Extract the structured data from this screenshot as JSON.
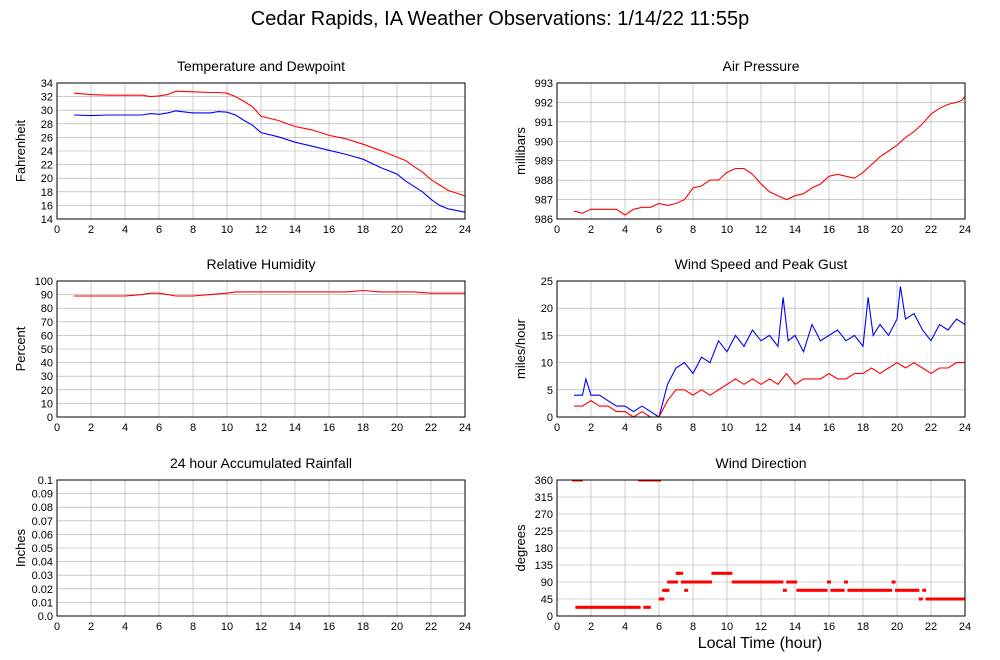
{
  "title": "Cedar Rapids, IA Weather Observations: 1/14/22 11:55p",
  "xlabel": "Local Time (hour)",
  "colors": {
    "red": "#ff0000",
    "blue": "#0000ff",
    "grid": "#aaaaaa",
    "frame": "#000000"
  },
  "chart_data": [
    {
      "id": "temp",
      "type": "line",
      "title": "Temperature and Dewpoint",
      "xlabel": "",
      "ylabel": "Fahrenheit",
      "xlim": [
        0,
        24
      ],
      "ylim": [
        14,
        34
      ],
      "xticks": [
        0,
        2,
        4,
        6,
        8,
        10,
        12,
        14,
        16,
        18,
        20,
        22,
        24
      ],
      "yticks": [
        14,
        16,
        18,
        20,
        22,
        24,
        26,
        28,
        30,
        32,
        34
      ],
      "grid": true,
      "series": [
        {
          "color": "#ff0000",
          "x": [
            1,
            2,
            3,
            4,
            5,
            5.5,
            6,
            6.5,
            7,
            8,
            9,
            9.5,
            10,
            10.5,
            11,
            11.5,
            12,
            13,
            14,
            15,
            16,
            17,
            18,
            19,
            20,
            20.5,
            21,
            21.5,
            22,
            22.5,
            23,
            24
          ],
          "y": [
            32.5,
            32.3,
            32.2,
            32.2,
            32.2,
            32.0,
            32.1,
            32.3,
            32.8,
            32.7,
            32.6,
            32.6,
            32.5,
            32.0,
            31.3,
            30.5,
            29.1,
            28.5,
            27.6,
            27.1,
            26.3,
            25.8,
            25.0,
            24.1,
            23.1,
            22.6,
            21.7,
            20.9,
            19.8,
            19.0,
            18.2,
            17.4
          ]
        },
        {
          "color": "#0000ff",
          "x": [
            1,
            2,
            3,
            4,
            5,
            5.5,
            6,
            6.5,
            7,
            8,
            9,
            9.5,
            10,
            10.5,
            11,
            11.5,
            12,
            13,
            14,
            15,
            16,
            17,
            18,
            19,
            20,
            20.5,
            21,
            21.5,
            22,
            22.5,
            23,
            24
          ],
          "y": [
            29.3,
            29.2,
            29.3,
            29.3,
            29.3,
            29.5,
            29.4,
            29.6,
            29.9,
            29.6,
            29.6,
            29.8,
            29.7,
            29.3,
            28.5,
            27.8,
            26.7,
            26.1,
            25.3,
            24.7,
            24.1,
            23.5,
            22.8,
            21.6,
            20.6,
            19.6,
            18.8,
            18.0,
            16.9,
            16.0,
            15.5,
            15.0
          ]
        }
      ]
    },
    {
      "id": "pressure",
      "type": "line",
      "title": "Air Pressure",
      "xlabel": "",
      "ylabel": "millibars",
      "xlim": [
        0,
        24
      ],
      "ylim": [
        986,
        993
      ],
      "xticks": [
        0,
        2,
        4,
        6,
        8,
        10,
        12,
        14,
        16,
        18,
        20,
        22,
        24
      ],
      "yticks": [
        986,
        987,
        988,
        989,
        990,
        991,
        992,
        993
      ],
      "grid": true,
      "series": [
        {
          "color": "#ff0000",
          "x": [
            1,
            1.5,
            2,
            2.5,
            3,
            3.5,
            4,
            4.5,
            5,
            5.5,
            6,
            6.5,
            7,
            7.5,
            8,
            8.5,
            9,
            9.5,
            10,
            10.5,
            11,
            11.5,
            12,
            12.5,
            13,
            13.5,
            14,
            14.5,
            15,
            15.5,
            16,
            16.5,
            17,
            17.5,
            18,
            18.5,
            19,
            19.5,
            20,
            20.5,
            21,
            21.5,
            22,
            22.5,
            23,
            23.5,
            23.8,
            24
          ],
          "y": [
            986.4,
            986.3,
            986.5,
            986.5,
            986.5,
            986.5,
            986.2,
            986.5,
            986.6,
            986.6,
            986.8,
            986.7,
            986.8,
            987.0,
            987.6,
            987.7,
            988.0,
            988.0,
            988.4,
            988.6,
            988.6,
            988.3,
            987.8,
            987.4,
            987.2,
            987.0,
            987.2,
            987.3,
            987.6,
            987.8,
            988.2,
            988.3,
            988.2,
            988.1,
            988.4,
            988.8,
            989.2,
            989.5,
            989.8,
            990.2,
            990.5,
            990.9,
            991.4,
            991.7,
            991.9,
            992.0,
            992.1,
            992.3
          ]
        }
      ]
    },
    {
      "id": "humidity",
      "type": "line",
      "title": "Relative Humidity",
      "xlabel": "",
      "ylabel": "Percent",
      "xlim": [
        0,
        24
      ],
      "ylim": [
        0,
        100
      ],
      "xticks": [
        0,
        2,
        4,
        6,
        8,
        10,
        12,
        14,
        16,
        18,
        20,
        22,
        24
      ],
      "yticks": [
        0,
        10,
        20,
        30,
        40,
        50,
        60,
        70,
        80,
        90,
        100
      ],
      "grid": true,
      "series": [
        {
          "color": "#ff0000",
          "x": [
            1,
            2,
            3,
            4,
            5,
            5.5,
            6,
            6.5,
            7,
            8,
            9,
            10,
            10.5,
            11,
            12,
            13,
            14,
            15,
            16,
            17,
            18,
            19,
            20,
            21,
            22,
            23,
            24
          ],
          "y": [
            89,
            89,
            89,
            89,
            90,
            91,
            91,
            90,
            89,
            89,
            90,
            91,
            92,
            92,
            92,
            92,
            92,
            92,
            92,
            92,
            93,
            92,
            92,
            92,
            91,
            91,
            91
          ]
        }
      ]
    },
    {
      "id": "wind",
      "type": "line",
      "title": "Wind Speed and Peak Gust",
      "xlabel": "",
      "ylabel": "miles/hour",
      "xlim": [
        0,
        24
      ],
      "ylim": [
        0,
        25
      ],
      "xticks": [
        0,
        2,
        4,
        6,
        8,
        10,
        12,
        14,
        16,
        18,
        20,
        22,
        24
      ],
      "yticks": [
        0,
        5,
        10,
        15,
        20,
        25
      ],
      "grid": true,
      "series": [
        {
          "color": "#0000ff",
          "x": [
            1,
            1.5,
            1.7,
            2,
            2.5,
            3,
            3.5,
            4,
            4.5,
            5,
            5.5,
            6,
            6.5,
            7,
            7.5,
            8,
            8.5,
            9,
            9.5,
            10,
            10.5,
            11,
            11.5,
            12,
            12.5,
            13,
            13.3,
            13.6,
            14,
            14.5,
            15,
            15.5,
            16,
            16.5,
            17,
            17.5,
            18,
            18.3,
            18.6,
            19,
            19.5,
            20,
            20.2,
            20.5,
            21,
            21.5,
            22,
            22.5,
            23,
            23.5,
            24
          ],
          "y": [
            4,
            4,
            7,
            4,
            4,
            3,
            2,
            2,
            1,
            2,
            1,
            0,
            6,
            9,
            10,
            8,
            11,
            10,
            14,
            12,
            15,
            13,
            16,
            14,
            15,
            13,
            22,
            14,
            15,
            12,
            17,
            14,
            15,
            16,
            14,
            15,
            13,
            22,
            15,
            17,
            15,
            18,
            24,
            18,
            19,
            16,
            14,
            17,
            16,
            18,
            17
          ]
        },
        {
          "color": "#ff0000",
          "x": [
            1,
            1.5,
            2,
            2.5,
            3,
            3.5,
            4,
            4.5,
            5,
            5.5,
            6,
            6.5,
            7,
            7.5,
            8,
            8.5,
            9,
            9.5,
            10,
            10.5,
            11,
            11.5,
            12,
            12.5,
            13,
            13.5,
            14,
            14.5,
            15,
            15.5,
            16,
            16.5,
            17,
            17.5,
            18,
            18.5,
            19,
            19.5,
            20,
            20.5,
            21,
            21.5,
            22,
            22.5,
            23,
            23.5,
            24
          ],
          "y": [
            2,
            2,
            3,
            2,
            2,
            1,
            1,
            0,
            1,
            0,
            0,
            3,
            5,
            5,
            4,
            5,
            4,
            5,
            6,
            7,
            6,
            7,
            6,
            7,
            6,
            8,
            6,
            7,
            7,
            7,
            8,
            7,
            7,
            8,
            8,
            9,
            8,
            9,
            10,
            9,
            10,
            9,
            8,
            9,
            9,
            10,
            10
          ]
        }
      ]
    },
    {
      "id": "rain",
      "type": "line",
      "title": "24 hour Accumulated Rainfall",
      "xlabel": "",
      "ylabel": "Inches",
      "xlim": [
        0,
        24
      ],
      "ylim": [
        0,
        0.1
      ],
      "xticks": [
        0,
        2,
        4,
        6,
        8,
        10,
        12,
        14,
        16,
        18,
        20,
        22,
        24
      ],
      "yticks": [
        "0.0",
        "0.01",
        "0.02",
        "0.03",
        "0.04",
        "0.05",
        "0.06",
        "0.07",
        "0.08",
        "0.09",
        "0.1"
      ],
      "grid": true,
      "series": [
        {
          "color": "#ff0000",
          "x": [
            0,
            24
          ],
          "y": [
            0,
            0
          ]
        }
      ]
    },
    {
      "id": "direction",
      "type": "scatter",
      "title": "Wind Direction",
      "xlabel": "Local Time (hour)",
      "ylabel": "degrees",
      "xlim": [
        0,
        24
      ],
      "ylim": [
        0,
        360
      ],
      "xticks": [
        0,
        2,
        4,
        6,
        8,
        10,
        12,
        14,
        16,
        18,
        20,
        22,
        24
      ],
      "yticks": [
        0,
        45,
        90,
        135,
        180,
        225,
        270,
        315,
        360
      ],
      "grid": true,
      "series": [
        {
          "color": "#ff0000",
          "x": [
            1,
            1.1,
            1.2,
            1.3,
            1.4,
            4.9,
            5.1,
            5.3,
            5.5,
            5.7,
            5.9,
            6.0,
            1.2,
            1.4,
            1.6,
            1.8,
            2.0,
            2.2,
            2.4,
            2.6,
            2.8,
            3.0,
            3.2,
            3.4,
            3.6,
            3.8,
            4.0,
            4.2,
            4.4,
            4.6,
            4.8,
            5.2,
            5.4,
            6.1,
            6.2,
            6.3,
            6.4,
            6.5,
            6.6,
            6.7,
            6.8,
            6.9,
            7.0,
            7.1,
            7.2,
            7.3,
            7.4,
            7.5,
            7.6,
            7.7,
            7.8,
            7.9,
            8.0,
            8.2,
            8.4,
            8.6,
            8.8,
            9.0,
            9.2,
            9.4,
            9.6,
            9.8,
            10.0,
            10.2,
            10.4,
            10.6,
            10.8,
            11.0,
            11.2,
            11.4,
            11.6,
            11.8,
            12.0,
            12.2,
            12.4,
            12.6,
            12.8,
            13.0,
            13.2,
            13.4,
            13.6,
            13.8,
            14.0,
            14.2,
            14.4,
            14.6,
            14.8,
            15.0,
            15.2,
            15.4,
            15.6,
            15.8,
            16.0,
            16.2,
            16.4,
            16.6,
            16.8,
            17.0,
            17.2,
            17.4,
            17.6,
            17.8,
            18.0,
            18.2,
            18.4,
            18.6,
            18.8,
            19.0,
            19.2,
            19.4,
            19.6,
            19.8,
            20.0,
            20.2,
            20.4,
            20.6,
            20.8,
            21.0,
            21.2,
            21.4,
            21.6,
            21.8,
            22.0,
            22.2,
            22.4,
            22.6,
            22.8,
            23.0,
            23.2,
            23.4,
            23.6,
            23.8,
            24.0
          ],
          "y": [
            360,
            360,
            360,
            360,
            360,
            360,
            360,
            360,
            360,
            360,
            360,
            360,
            23,
            23,
            23,
            23,
            23,
            23,
            23,
            23,
            23,
            23,
            23,
            23,
            23,
            23,
            23,
            23,
            23,
            23,
            23,
            23,
            23,
            45,
            45,
            68,
            68,
            68,
            90,
            90,
            90,
            90,
            90,
            113,
            113,
            113,
            90,
            90,
            68,
            90,
            90,
            90,
            90,
            90,
            90,
            90,
            90,
            90,
            113,
            113,
            113,
            113,
            113,
            113,
            90,
            90,
            90,
            90,
            90,
            90,
            90,
            90,
            90,
            90,
            90,
            90,
            90,
            90,
            90,
            68,
            90,
            90,
            90,
            68,
            68,
            68,
            68,
            68,
            68,
            68,
            68,
            68,
            90,
            68,
            68,
            68,
            68,
            90,
            68,
            68,
            68,
            68,
            68,
            68,
            68,
            68,
            68,
            68,
            68,
            68,
            68,
            90,
            68,
            68,
            68,
            68,
            68,
            68,
            68,
            45,
            68,
            45,
            45,
            45,
            45,
            45,
            45,
            45,
            45,
            45,
            45,
            45,
            45
          ]
        }
      ]
    }
  ]
}
